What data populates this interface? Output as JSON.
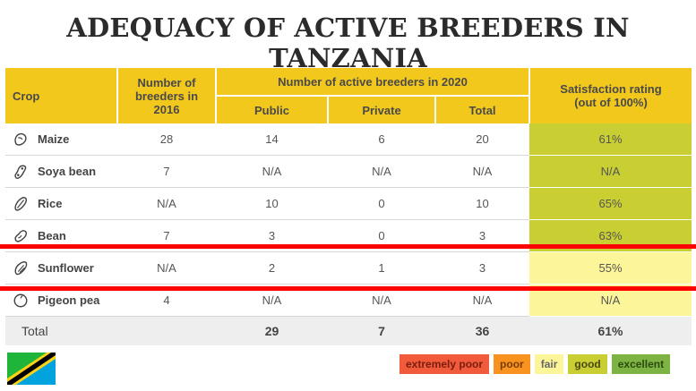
{
  "title": "ADEQUACY OF ACTIVE BREEDERS IN TANZANIA",
  "headers": {
    "crop": "Crop",
    "breeders_2016": "Number of breeders in 2016",
    "active_2020": "Number of active breeders in 2020",
    "public": "Public",
    "private": "Private",
    "total": "Total",
    "satisfaction": "Satisfaction rating (out of 100%)"
  },
  "rows": [
    {
      "crop": "Maize",
      "icon": "maize-icon",
      "b2016": "28",
      "public": "14",
      "private": "6",
      "total": "20",
      "rating": "61%",
      "rating_level": "good"
    },
    {
      "crop": "Soya bean",
      "icon": "soya-bean-icon",
      "b2016": "7",
      "public": "N/A",
      "private": "N/A",
      "total": "N/A",
      "rating": "N/A",
      "rating_level": "good"
    },
    {
      "crop": "Rice",
      "icon": "rice-icon",
      "b2016": "N/A",
      "public": "10",
      "private": "0",
      "total": "10",
      "rating": "65%",
      "rating_level": "good"
    },
    {
      "crop": "Bean",
      "icon": "bean-icon",
      "b2016": "7",
      "public": "3",
      "private": "0",
      "total": "3",
      "rating": "63%",
      "rating_level": "good"
    },
    {
      "crop": "Sunflower",
      "icon": "sunflower-seed-icon",
      "b2016": "N/A",
      "public": "2",
      "private": "1",
      "total": "3",
      "rating": "55%",
      "rating_level": "fair"
    },
    {
      "crop": "Pigeon pea",
      "icon": "pigeon-pea-icon",
      "b2016": "4",
      "public": "N/A",
      "private": "N/A",
      "total": "N/A",
      "rating": "N/A",
      "rating_level": "fair"
    }
  ],
  "total_row": {
    "label": "Total",
    "b2016": "",
    "public": "29",
    "private": "7",
    "total": "36",
    "rating": "61%"
  },
  "legend": [
    {
      "label": "extremely poor",
      "color": "#f15a3a",
      "text_color": "#7a1e0e"
    },
    {
      "label": "poor",
      "color": "#f7931e",
      "text_color": "#7a3d05"
    },
    {
      "label": "fair",
      "color": "#fcf599",
      "text_color": "#666666"
    },
    {
      "label": "good",
      "color": "#c9cf33",
      "text_color": "#4a4a10"
    },
    {
      "label": "excellent",
      "color": "#7cb342",
      "text_color": "#2d4a10"
    }
  ],
  "colors": {
    "header": "#f2c81d",
    "good": "#c9cf33",
    "fair": "#fcf599",
    "highlight_line": "#ff0000"
  },
  "flag": "tanzania-flag-icon"
}
